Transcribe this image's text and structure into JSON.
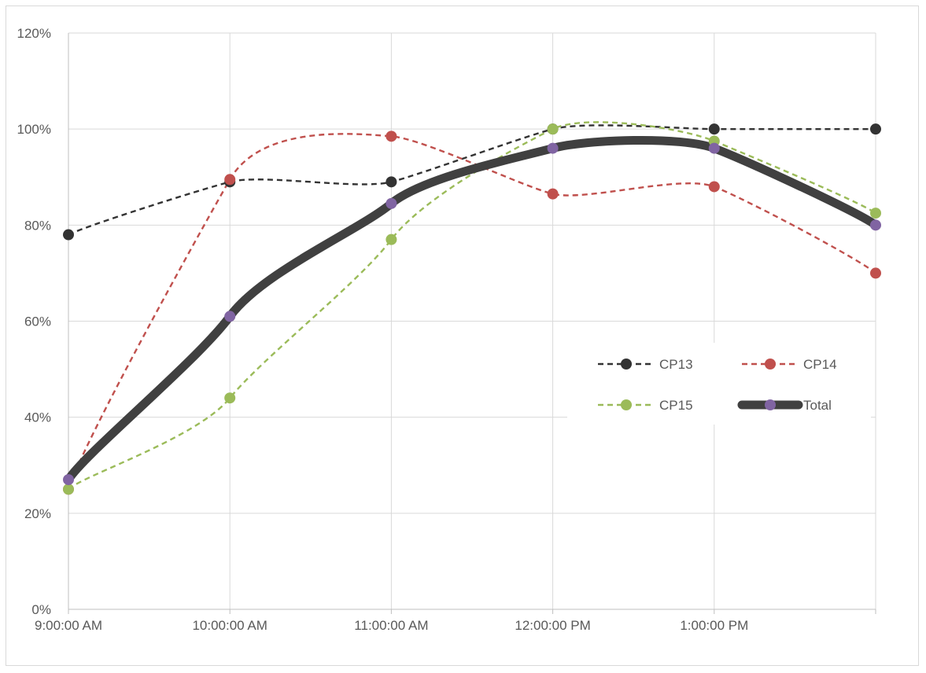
{
  "chart_data": {
    "type": "line",
    "title": "",
    "xlabel": "",
    "ylabel": "",
    "x_labels": [
      "9:00:00 AM",
      "10:00:00 AM",
      "11:00:00 AM",
      "12:00:00 PM",
      "1:00:00 PM",
      ""
    ],
    "y_ticks": [
      "0%",
      "20%",
      "40%",
      "60%",
      "80%",
      "100%",
      "120%"
    ],
    "ylim": [
      0,
      1.2
    ],
    "grid": true,
    "legend_position": "right-middle",
    "series": [
      {
        "name": "CP13",
        "values": [
          0.78,
          0.89,
          0.89,
          1.0,
          1.0,
          1.0
        ],
        "color": "#333333",
        "style": "dashed"
      },
      {
        "name": "CP14",
        "values": [
          0.25,
          0.895,
          0.985,
          0.865,
          0.88,
          0.7
        ],
        "color": "#c0504d",
        "style": "dashed"
      },
      {
        "name": "CP15",
        "values": [
          0.25,
          0.44,
          0.77,
          1.0,
          0.975,
          0.825
        ],
        "color": "#9bbb59",
        "style": "dashed"
      },
      {
        "name": "Total",
        "values": [
          0.27,
          0.61,
          0.845,
          0.96,
          0.96,
          0.8
        ],
        "color": "#404040",
        "marker_color": "#8064a2",
        "style": "thick"
      }
    ]
  }
}
